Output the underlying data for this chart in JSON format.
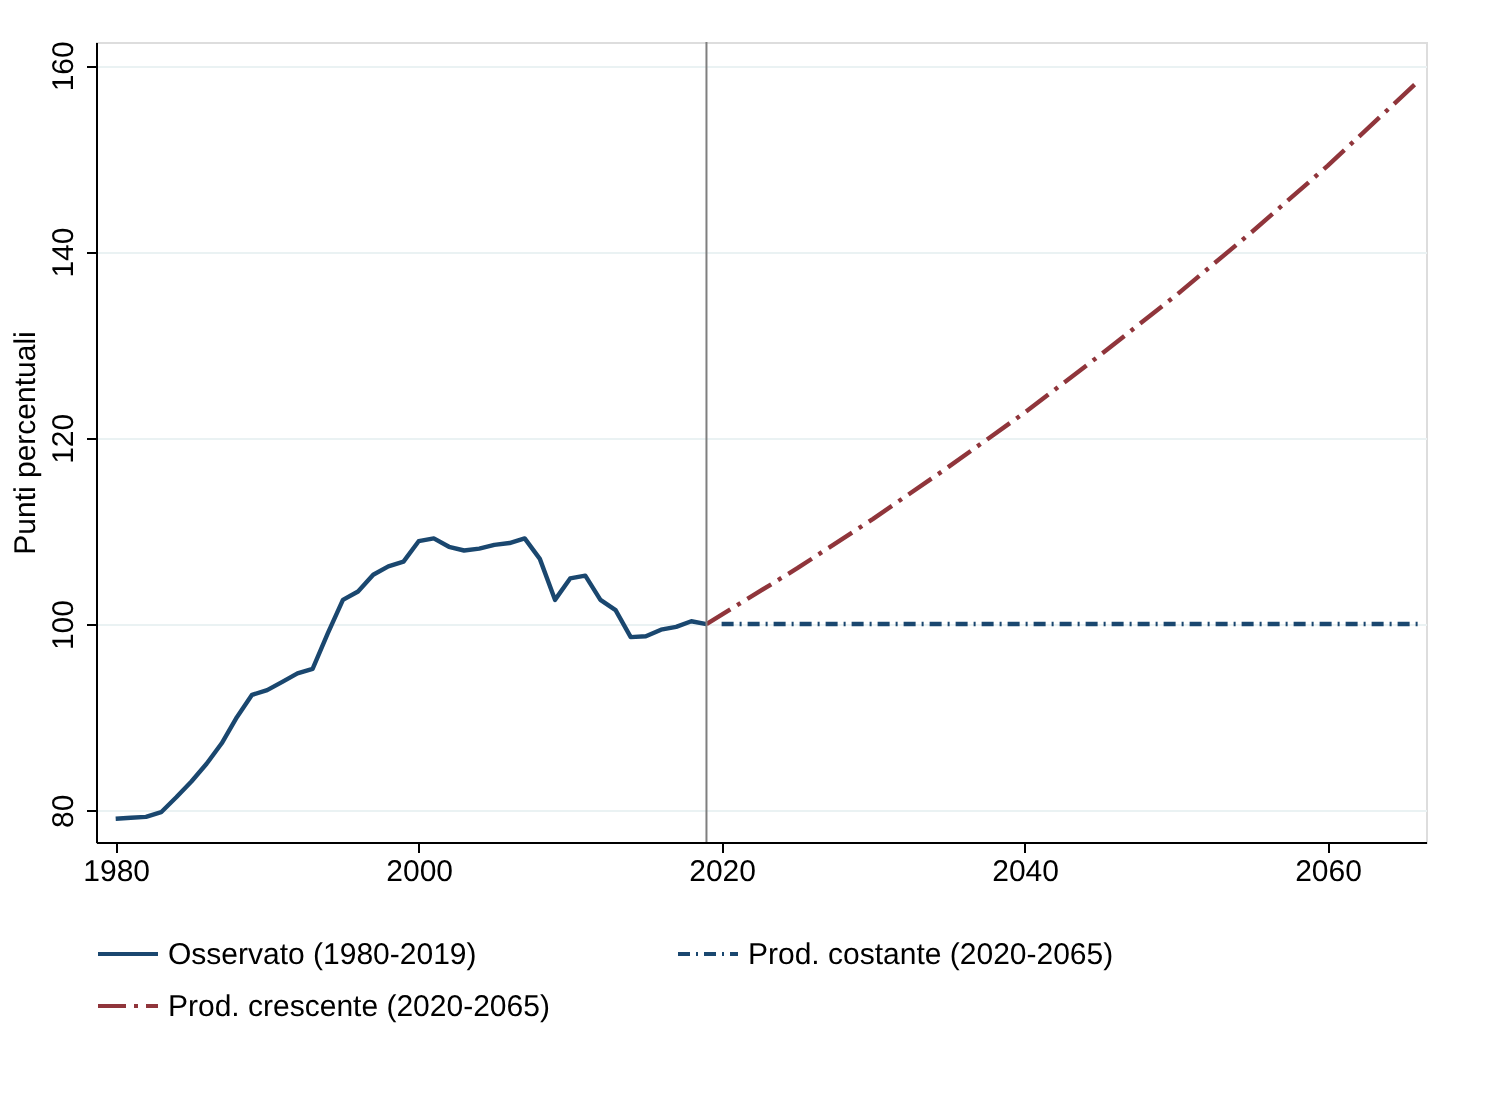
{
  "chart_data": {
    "type": "line",
    "ylabel": "Punti percentuali",
    "xlim": [
      1978.7,
      2066.5
    ],
    "ylim": [
      76.6,
      162.5
    ],
    "xticks": [
      1980,
      2000,
      2020,
      2040,
      2060
    ],
    "yticks": [
      80,
      100,
      120,
      140,
      160
    ],
    "grid": "y",
    "legend": "bottom",
    "ref_lines": [
      {
        "axis": "x",
        "value": 2019,
        "color": "#7f7f7f"
      }
    ],
    "series": [
      {
        "name": "Osservato (1980-2019)",
        "color": "#1a476f",
        "line_style": "solid",
        "x": [
          1980,
          1981,
          1982,
          1983,
          1984,
          1985,
          1986,
          1987,
          1988,
          1989,
          1990,
          1991,
          1992,
          1993,
          1994,
          1995,
          1996,
          1997,
          1998,
          1999,
          2000,
          2001,
          2002,
          2003,
          2004,
          2005,
          2006,
          2007,
          2008,
          2009,
          2010,
          2011,
          2012,
          2013,
          2014,
          2015,
          2016,
          2017,
          2018,
          2019
        ],
        "values": [
          79.1,
          79.2,
          79.3,
          79.8,
          81.4,
          83.1,
          85.0,
          87.2,
          90.0,
          92.4,
          92.9,
          93.8,
          94.7,
          95.2,
          99.0,
          102.6,
          103.5,
          105.3,
          106.2,
          106.7,
          108.9,
          109.2,
          108.3,
          107.9,
          108.1,
          108.5,
          108.7,
          109.2,
          107.0,
          102.6,
          104.9,
          105.2,
          102.6,
          101.5,
          98.6,
          98.7,
          99.4,
          99.7,
          100.3,
          100.0
        ]
      },
      {
        "name": "Prod. costante (2020-2065)",
        "color": "#1a476f",
        "line_style": "dotted",
        "x": [
          2020,
          2066
        ],
        "values": [
          100,
          100
        ]
      },
      {
        "name": "Prod. crescente (2020-2065)",
        "color": "#90353b",
        "line_style": "dashed",
        "x": [
          2019,
          2025,
          2030,
          2035,
          2040,
          2045,
          2050,
          2055,
          2060,
          2066
        ],
        "values": [
          100,
          106.0,
          111.3,
          116.9,
          122.7,
          128.9,
          135.3,
          142.1,
          149.2,
          158.3
        ]
      }
    ]
  }
}
